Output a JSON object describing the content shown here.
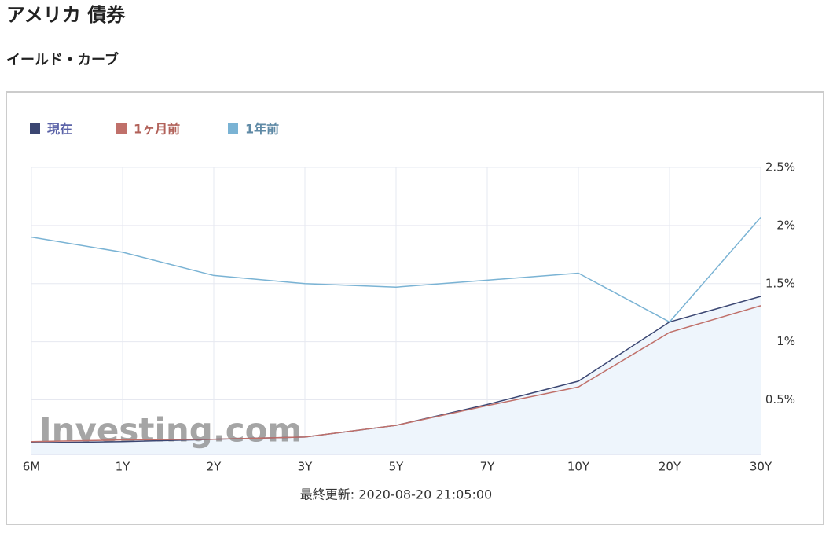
{
  "chart_data": {
    "type": "line",
    "title": "アメリカ 債券",
    "subtitle": "イールド・カーブ",
    "watermark": "Investing.com",
    "footer": "最終更新: 2020-08-20 21:05:00",
    "categories": [
      "6M",
      "1Y",
      "2Y",
      "3Y",
      "5Y",
      "7Y",
      "10Y",
      "20Y",
      "30Y"
    ],
    "series": [
      {
        "name": "現在",
        "color": "#3b4672",
        "text_color": "#5b63a8",
        "fill": "#eef5fc",
        "values": [
          0.13,
          0.14,
          0.16,
          0.18,
          0.28,
          0.46,
          0.66,
          1.17,
          1.39
        ]
      },
      {
        "name": "1ヶ月前",
        "color": "#c0706a",
        "text_color": "#b2625a",
        "values": [
          0.14,
          0.155,
          0.16,
          0.18,
          0.28,
          0.45,
          0.61,
          1.08,
          1.31
        ]
      },
      {
        "name": "1年前",
        "color": "#7ab3d4",
        "text_color": "#5f8aa6",
        "values": [
          1.9,
          1.77,
          1.57,
          1.5,
          1.47,
          1.53,
          1.59,
          1.17,
          2.07
        ]
      }
    ],
    "ylim": [
      0.03,
      2.5
    ],
    "yticks": [
      {
        "value": 0.5,
        "label": "0.5%"
      },
      {
        "value": 1,
        "label": "1%"
      },
      {
        "value": 1.5,
        "label": "1.5%"
      },
      {
        "value": 2,
        "label": "2%"
      },
      {
        "value": 2.5,
        "label": "2.5%"
      }
    ],
    "grid": true,
    "legend": "top-left"
  }
}
